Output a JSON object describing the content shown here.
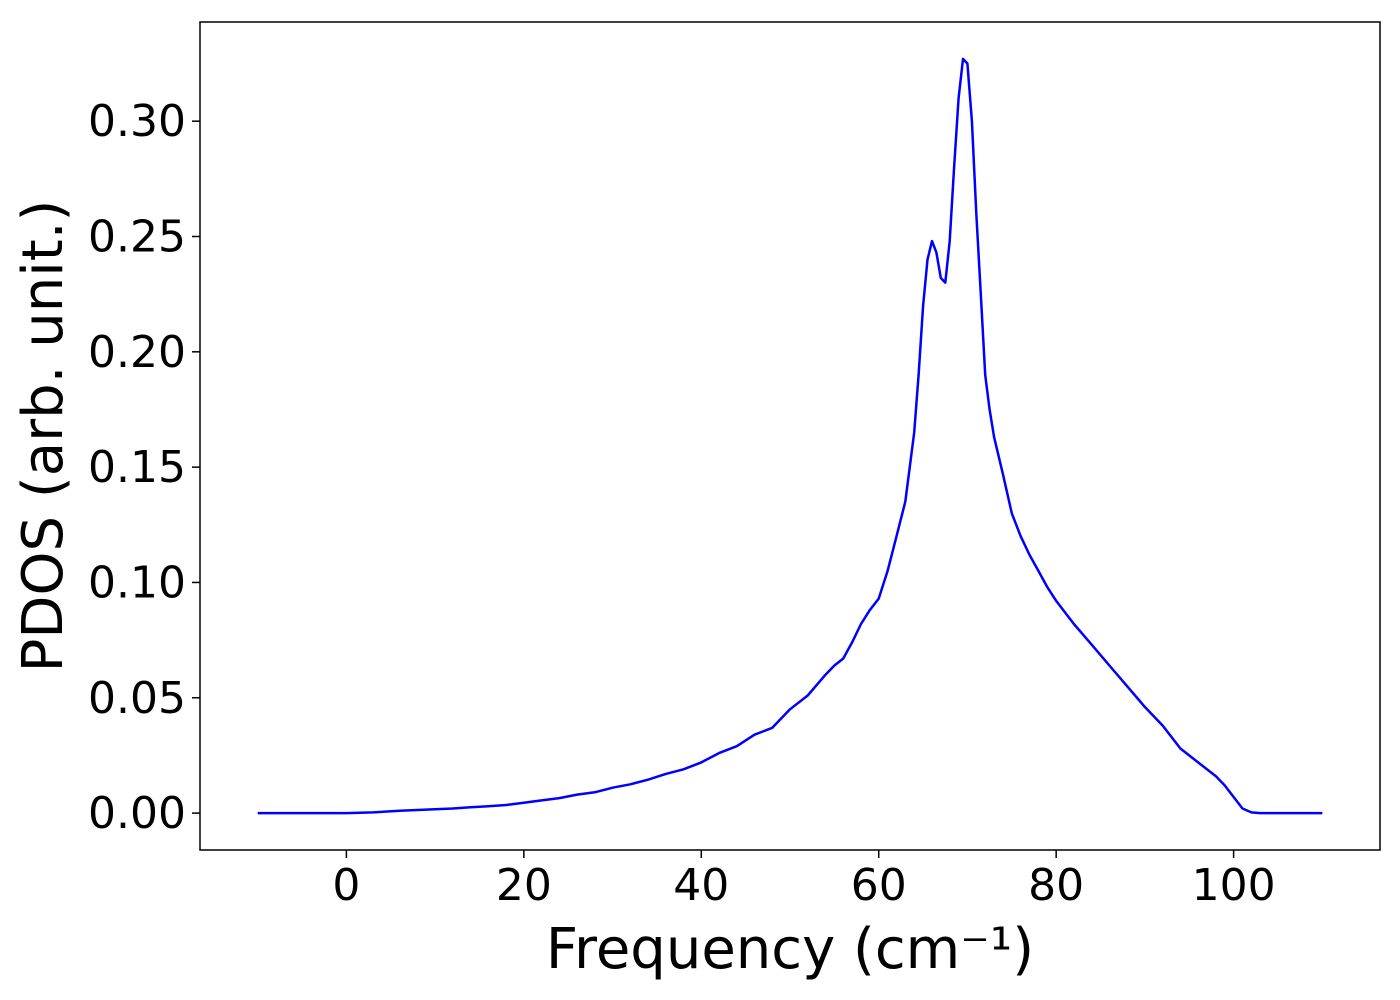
{
  "chart_data": {
    "type": "line",
    "title": "",
    "xlabel": "Frequency (cm⁻¹)",
    "ylabel": "PDOS (arb. unit.)",
    "xlim": [
      -16.5,
      116.5
    ],
    "ylim": [
      -0.016,
      0.343
    ],
    "xticks": [
      0,
      20,
      40,
      60,
      80,
      100
    ],
    "xtick_labels": [
      "0",
      "20",
      "40",
      "60",
      "80",
      "100"
    ],
    "yticks": [
      0.0,
      0.05,
      0.1,
      0.15,
      0.2,
      0.25,
      0.3
    ],
    "ytick_labels": [
      "0.00",
      "0.05",
      "0.10",
      "0.15",
      "0.20",
      "0.25",
      "0.30"
    ],
    "grid": false,
    "legend": "none",
    "series": [
      {
        "color": "#0000ff",
        "x": [
          -10,
          -5,
          0,
          3,
          6,
          9,
          12,
          14,
          16,
          18,
          20,
          22,
          24,
          26,
          28,
          30,
          32,
          34,
          36,
          38,
          40,
          42,
          44,
          46,
          48,
          50,
          52,
          54,
          55,
          56,
          57,
          58,
          59,
          60,
          61,
          62,
          63,
          64,
          64.5,
          65,
          65.5,
          66,
          66.5,
          67,
          67.5,
          68,
          68.5,
          69,
          69.5,
          70,
          70.5,
          71,
          71.5,
          72,
          72.5,
          73,
          73.5,
          74,
          75,
          76,
          77,
          78,
          79,
          80,
          82,
          84,
          86,
          88,
          90,
          92,
          94,
          96,
          98,
          99,
          100,
          101,
          102,
          103,
          105,
          110
        ],
        "y": [
          0.0,
          0.0,
          0.0,
          0.0003,
          0.001,
          0.0015,
          0.002,
          0.0025,
          0.003,
          0.0035,
          0.0045,
          0.0055,
          0.0065,
          0.008,
          0.009,
          0.011,
          0.0125,
          0.0145,
          0.017,
          0.019,
          0.022,
          0.026,
          0.029,
          0.034,
          0.037,
          0.045,
          0.051,
          0.06,
          0.064,
          0.067,
          0.074,
          0.082,
          0.088,
          0.093,
          0.105,
          0.12,
          0.135,
          0.165,
          0.19,
          0.22,
          0.24,
          0.248,
          0.243,
          0.232,
          0.23,
          0.248,
          0.28,
          0.31,
          0.327,
          0.325,
          0.3,
          0.26,
          0.225,
          0.19,
          0.175,
          0.163,
          0.155,
          0.147,
          0.13,
          0.12,
          0.112,
          0.105,
          0.098,
          0.092,
          0.082,
          0.073,
          0.064,
          0.055,
          0.046,
          0.038,
          0.028,
          0.022,
          0.016,
          0.012,
          0.007,
          0.002,
          0.0003,
          0.0,
          0.0,
          0.0
        ]
      }
    ]
  }
}
